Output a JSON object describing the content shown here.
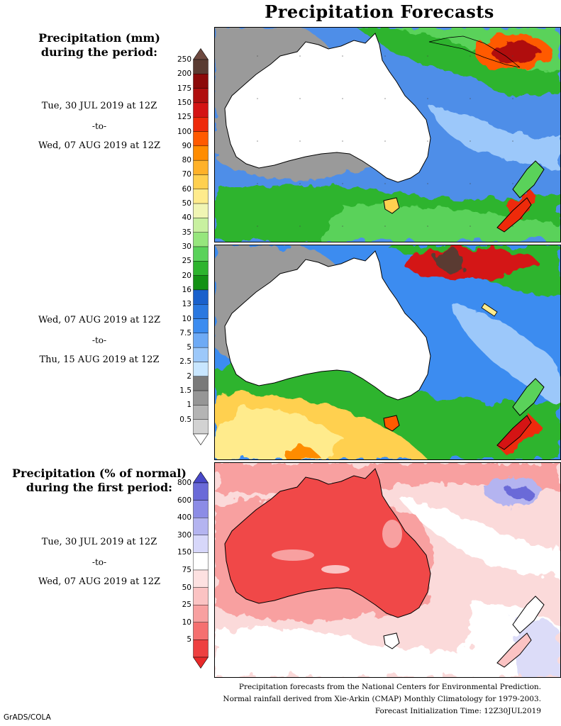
{
  "title": "Precipitation Forecasts",
  "amount_heading": [
    "Precipitation (mm)",
    "during the period:"
  ],
  "period1": {
    "start": "Tue, 30 JUL 2019 at 12Z",
    "to": "-to-",
    "end": "Wed, 07 AUG 2019 at 12Z"
  },
  "period2": {
    "start": "Wed, 07 AUG 2019 at 12Z",
    "to": "-to-",
    "end": "Thu, 15 AUG 2019 at 12Z"
  },
  "percent_heading": [
    "Precipitation (% of normal)",
    "during the first period:"
  ],
  "period3": {
    "start": "Tue, 30 JUL 2019 at 12Z",
    "to": "-to-",
    "end": "Wed, 07 AUG 2019 at 12Z"
  },
  "amount_scale": {
    "labels": [
      "250",
      "200",
      "175",
      "150",
      "125",
      "100",
      "90",
      "80",
      "70",
      "60",
      "50",
      "40",
      "35",
      "30",
      "25",
      "20",
      "16",
      "13",
      "10",
      "7.5",
      "5",
      "2.5",
      "2",
      "1.5",
      "1",
      "0.5"
    ],
    "colors": [
      "#5a3b32",
      "#8c0a0a",
      "#b00f0f",
      "#d41414",
      "#ee2a0a",
      "#ff5a00",
      "#ff8c00",
      "#ffb128",
      "#ffd050",
      "#ffeb8c",
      "#f0f5b4",
      "#c8f0a0",
      "#96e67d",
      "#5ad25a",
      "#2db42d",
      "#139114",
      "#1960cc",
      "#2a78e0",
      "#3c8cf0",
      "#6eaaf5",
      "#9cc8fa",
      "#c8e6ff",
      "#7a7a7a",
      "#969696",
      "#b4b4b4",
      "#d2d2d2"
    ],
    "top_arrow_color": "#6e4a40",
    "bottom_arrow_color": "#ffffff"
  },
  "percent_scale": {
    "labels": [
      "800",
      "600",
      "400",
      "300",
      "150",
      "75",
      "50",
      "25",
      "10",
      "5"
    ],
    "colors": [
      "#6a6ad8",
      "#8c8ce6",
      "#b4b4f0",
      "#d7d7fa",
      "#ffffff",
      "#fde1e1",
      "#fbc3c3",
      "#f8a0a0",
      "#f57070",
      "#ee4040"
    ],
    "top_arrow_color": "#4848c8",
    "bottom_arrow_color": "#e82a2a"
  },
  "footer": [
    "Precipitation forecasts from the National Centers for Environmental Prediction.",
    "Normal rainfall derived from Xie-Arkin (CMAP) Monthly Climatology for 1979-2003.",
    "Forecast Initialization Time: 12Z30JUL2019"
  ],
  "credit": "GrADS/COLA"
}
